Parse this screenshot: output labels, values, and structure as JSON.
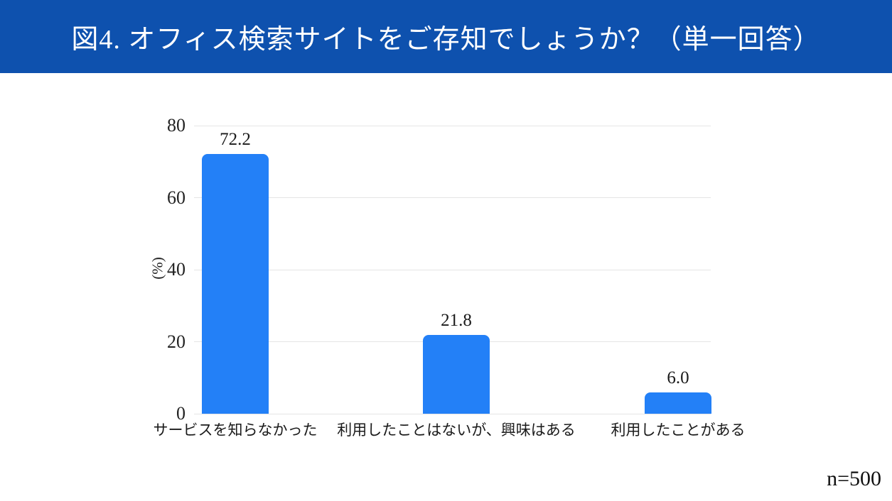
{
  "header": {
    "title": "図4. オフィス検索サイトをご存知でしょうか？（単一回答）"
  },
  "chart_data": {
    "type": "bar",
    "categories": [
      "サービスを知らなかった",
      "利用したことはないが、興味はある",
      "利用したことがある"
    ],
    "values": [
      72.2,
      21.8,
      6.0
    ],
    "title": "図4. オフィス検索サイトをご存知でしょうか？（単一回答）",
    "xlabel": "",
    "ylabel": "(%)",
    "ylim": [
      0,
      80
    ],
    "yticks": [
      0,
      20,
      40,
      60,
      80
    ],
    "grid": true,
    "legend": "none",
    "bar_color": "#2380f7"
  },
  "footnote": "n=500",
  "colors": {
    "banner_bg": "#0e51ae",
    "banner_text": "#ffffff",
    "bar": "#2380f7",
    "gridline": "#e5e5e5",
    "text": "#1a1a1a"
  }
}
